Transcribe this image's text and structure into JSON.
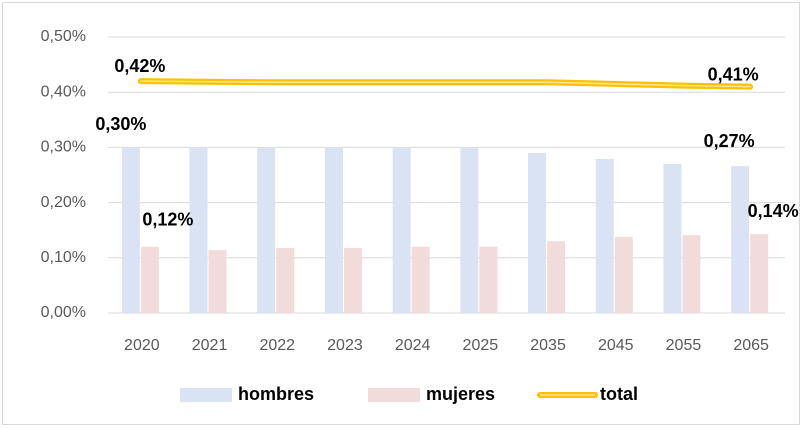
{
  "chart_data": {
    "type": "bar_line",
    "categories": [
      "2020",
      "2021",
      "2022",
      "2023",
      "2024",
      "2025",
      "2035",
      "2045",
      "2055",
      "2065"
    ],
    "series": [
      {
        "name": "hombres",
        "type": "bar",
        "color": "#dae3f3",
        "values": [
          0.3,
          0.3,
          0.3,
          0.3,
          0.3,
          0.3,
          0.29,
          0.279,
          0.27,
          0.266
        ],
        "value_labels": [
          "0,30%",
          null,
          null,
          null,
          null,
          null,
          null,
          null,
          null,
          "0,27%"
        ]
      },
      {
        "name": "mujeres",
        "type": "bar",
        "color": "#f2dcdb",
        "values": [
          0.12,
          0.114,
          0.118,
          0.118,
          0.12,
          0.12,
          0.13,
          0.138,
          0.141,
          0.143
        ],
        "value_labels": [
          "0,12%",
          null,
          null,
          null,
          null,
          null,
          null,
          null,
          null,
          "0,14%"
        ]
      },
      {
        "name": "total",
        "type": "line",
        "color": "#ffc000",
        "values": [
          0.42,
          0.419,
          0.418,
          0.418,
          0.418,
          0.418,
          0.418,
          0.415,
          0.412,
          0.41
        ],
        "value_labels": [
          "0,42%",
          null,
          null,
          null,
          null,
          null,
          null,
          null,
          null,
          "0,41%"
        ]
      }
    ],
    "ylim": [
      0,
      0.5
    ],
    "yticks": [
      {
        "value": 0,
        "label": "0,00%"
      },
      {
        "value": 0.1,
        "label": "0,10%"
      },
      {
        "value": 0.2,
        "label": "0,20%"
      },
      {
        "value": 0.3,
        "label": "0,30%"
      },
      {
        "value": 0.4,
        "label": "0,40%"
      },
      {
        "value": 0.5,
        "label": "0,50%"
      }
    ],
    "grid": true,
    "legend": "bottom"
  }
}
